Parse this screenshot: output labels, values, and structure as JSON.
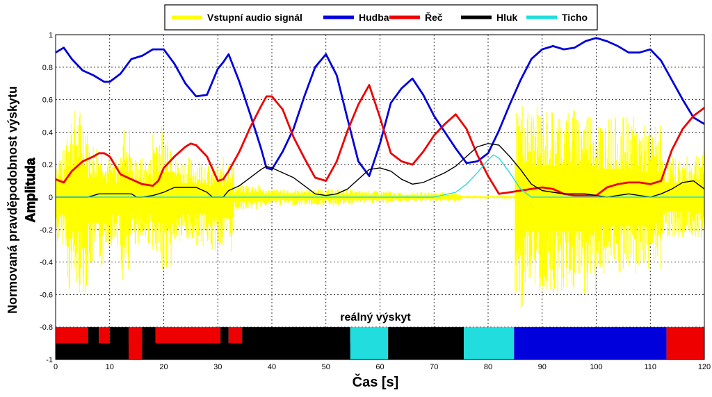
{
  "chart_data": {
    "type": "line",
    "xlabel": "Čas [s]",
    "ylabel": "Normovaná pravděpodobnost výskytu",
    "ylabel2": "Amplituda",
    "xlim": [
      0,
      120
    ],
    "ylim": [
      -1,
      1
    ],
    "xticks": [
      0,
      10,
      20,
      30,
      40,
      50,
      60,
      70,
      80,
      90,
      100,
      110,
      120
    ],
    "yticks": [
      1,
      0.8,
      0.6,
      0.4,
      0.2,
      0,
      -0.2,
      -0.4,
      -0.6,
      -0.8,
      -1
    ],
    "grid": true,
    "legend_position": "top",
    "annotation": "reálný výskyt",
    "series": [
      {
        "name": "Vstupní audio signál",
        "color": "#ffff00",
        "kind": "audio-envelope",
        "segments": [
          {
            "x0": 0,
            "x1": 2,
            "upper": 0.3,
            "lower": -0.3
          },
          {
            "x0": 2,
            "x1": 6,
            "upper": 0.55,
            "lower": -0.6
          },
          {
            "x0": 6,
            "x1": 9,
            "upper": 0.35,
            "lower": -0.45
          },
          {
            "x0": 9,
            "x1": 12,
            "upper": 0.25,
            "lower": -0.3
          },
          {
            "x0": 12,
            "x1": 14,
            "upper": 0.45,
            "lower": -0.55
          },
          {
            "x0": 14,
            "x1": 18,
            "upper": 0.25,
            "lower": -0.3
          },
          {
            "x0": 18,
            "x1": 22,
            "upper": 0.45,
            "lower": -0.45
          },
          {
            "x0": 22,
            "x1": 28,
            "upper": 0.25,
            "lower": -0.3
          },
          {
            "x0": 28,
            "x1": 31,
            "upper": 0.2,
            "lower": -0.35
          },
          {
            "x0": 31,
            "x1": 33,
            "upper": 0.25,
            "lower": -0.35
          },
          {
            "x0": 33,
            "x1": 38,
            "upper": 0.08,
            "lower": -0.08
          },
          {
            "x0": 38,
            "x1": 55,
            "upper": 0.05,
            "lower": -0.05
          },
          {
            "x0": 55,
            "x1": 62,
            "upper": 0.04,
            "lower": -0.04
          },
          {
            "x0": 62,
            "x1": 75,
            "upper": 0.03,
            "lower": -0.03
          },
          {
            "x0": 75,
            "x1": 85,
            "upper": 0.01,
            "lower": -0.01
          },
          {
            "x0": 85,
            "x1": 87,
            "upper": 0.6,
            "lower": -0.7
          },
          {
            "x0": 87,
            "x1": 100,
            "upper": 0.55,
            "lower": -0.6
          },
          {
            "x0": 100,
            "x1": 108,
            "upper": 0.5,
            "lower": -0.5
          },
          {
            "x0": 108,
            "x1": 112,
            "upper": 0.45,
            "lower": -0.45
          },
          {
            "x0": 112,
            "x1": 118,
            "upper": 0.25,
            "lower": -0.25
          },
          {
            "x0": 118,
            "x1": 120,
            "upper": 0.3,
            "lower": -0.25
          }
        ]
      },
      {
        "name": "Hudba",
        "color": "#0000dd",
        "x": [
          0,
          1.5,
          3,
          5,
          7,
          9,
          10,
          12,
          14,
          16,
          18,
          19,
          20,
          22,
          24,
          26,
          28,
          30,
          31,
          32,
          34,
          36,
          38,
          39,
          40,
          42,
          44,
          46,
          48,
          50,
          52,
          54,
          56,
          58,
          60,
          62,
          64,
          66,
          68,
          70,
          72,
          74,
          76,
          78,
          80,
          82,
          84,
          86,
          88,
          90,
          92,
          94,
          96,
          98,
          100,
          102,
          104,
          106,
          108,
          110,
          112,
          114,
          116,
          118,
          120
        ],
        "y": [
          0.89,
          0.92,
          0.85,
          0.78,
          0.75,
          0.71,
          0.71,
          0.76,
          0.85,
          0.87,
          0.91,
          0.91,
          0.91,
          0.82,
          0.7,
          0.62,
          0.63,
          0.79,
          0.83,
          0.88,
          0.71,
          0.51,
          0.3,
          0.18,
          0.17,
          0.28,
          0.42,
          0.62,
          0.8,
          0.88,
          0.75,
          0.48,
          0.22,
          0.13,
          0.33,
          0.58,
          0.67,
          0.73,
          0.63,
          0.5,
          0.4,
          0.3,
          0.21,
          0.22,
          0.27,
          0.41,
          0.57,
          0.72,
          0.85,
          0.91,
          0.93,
          0.91,
          0.92,
          0.96,
          0.98,
          0.96,
          0.93,
          0.89,
          0.89,
          0.91,
          0.84,
          0.72,
          0.6,
          0.49,
          0.45
        ]
      },
      {
        "name": "Řeč",
        "color": "#ee0000",
        "x": [
          0,
          1.5,
          3,
          5,
          7,
          8,
          9,
          10,
          12,
          14,
          16,
          18,
          19,
          20,
          22,
          24,
          25,
          26,
          28,
          30,
          31,
          32,
          34,
          36,
          38,
          39,
          40,
          42,
          44,
          46,
          48,
          50,
          52,
          54,
          56,
          58,
          60,
          62,
          64,
          66,
          68,
          70,
          72,
          74,
          76,
          78,
          80,
          82,
          84,
          86,
          88,
          90,
          92,
          94,
          96,
          98,
          100,
          102,
          104,
          106,
          108,
          110,
          112,
          114,
          116,
          118,
          120
        ],
        "y": [
          0.11,
          0.09,
          0.16,
          0.22,
          0.25,
          0.27,
          0.27,
          0.25,
          0.14,
          0.11,
          0.08,
          0.07,
          0.1,
          0.18,
          0.25,
          0.31,
          0.33,
          0.32,
          0.25,
          0.1,
          0.11,
          0.16,
          0.28,
          0.43,
          0.56,
          0.62,
          0.62,
          0.54,
          0.37,
          0.24,
          0.12,
          0.1,
          0.22,
          0.41,
          0.57,
          0.69,
          0.49,
          0.27,
          0.22,
          0.2,
          0.28,
          0.38,
          0.45,
          0.51,
          0.42,
          0.26,
          0.13,
          0.02,
          0.03,
          0.04,
          0.05,
          0.06,
          0.05,
          0.02,
          0.01,
          0.01,
          0.01,
          0.06,
          0.08,
          0.09,
          0.09,
          0.08,
          0.1,
          0.29,
          0.42,
          0.5,
          0.55
        ]
      },
      {
        "name": "Hluk",
        "color": "#000000",
        "x": [
          0,
          2,
          4,
          6,
          7,
          8,
          10,
          12,
          14,
          15,
          16,
          18,
          20,
          22,
          24,
          26,
          28,
          29,
          30,
          31,
          32,
          34,
          36,
          38,
          39,
          40,
          42,
          44,
          46,
          48,
          50,
          52,
          54,
          56,
          58,
          60,
          62,
          64,
          66,
          68,
          70,
          72,
          74,
          76,
          78,
          80,
          82,
          84,
          86,
          88,
          90,
          92,
          94,
          96,
          98,
          100,
          102,
          104,
          106,
          108,
          110,
          112,
          114,
          116,
          118,
          120
        ],
        "y": [
          0.0,
          0.0,
          0.0,
          0.0,
          0.01,
          0.02,
          0.02,
          0.02,
          0.02,
          0.0,
          0.0,
          0.01,
          0.03,
          0.06,
          0.06,
          0.06,
          0.03,
          0.0,
          0.0,
          0.0,
          0.04,
          0.07,
          0.12,
          0.17,
          0.19,
          0.18,
          0.15,
          0.12,
          0.07,
          0.02,
          0.01,
          0.02,
          0.05,
          0.11,
          0.17,
          0.18,
          0.16,
          0.11,
          0.08,
          0.09,
          0.12,
          0.15,
          0.19,
          0.25,
          0.31,
          0.33,
          0.32,
          0.25,
          0.17,
          0.08,
          0.04,
          0.03,
          0.02,
          0.02,
          0.02,
          0.01,
          0.0,
          0.01,
          0.02,
          0.01,
          0.0,
          0.02,
          0.05,
          0.09,
          0.1,
          0.05
        ]
      },
      {
        "name": "Ticho",
        "color": "#22dddd",
        "x": [
          0,
          70,
          74,
          76,
          78,
          80,
          81,
          82,
          84,
          86,
          88,
          120
        ],
        "y": [
          0.0,
          0.0,
          0.03,
          0.08,
          0.15,
          0.23,
          0.26,
          0.24,
          0.15,
          0.05,
          0.0,
          0.0
        ]
      }
    ],
    "occurrence_bar": {
      "y_range": [
        -1,
        -0.8
      ],
      "segments": [
        {
          "x0": 0,
          "x1": 6,
          "label": "Řeč",
          "color": "#ee0000"
        },
        {
          "x0": 6,
          "x1": 8,
          "label": "Hluk",
          "color": "#000000"
        },
        {
          "x0": 8,
          "x1": 10,
          "label": "Řeč",
          "color": "#ee0000"
        },
        {
          "x0": 10,
          "x1": 13.5,
          "label": "Hluk",
          "color": "#000000"
        },
        {
          "x0": 13.5,
          "x1": 16,
          "label": "Řeč",
          "color": "#ee0000"
        },
        {
          "x0": 16,
          "x1": 18.5,
          "label": "Hluk",
          "color": "#000000"
        },
        {
          "x0": 18.5,
          "x1": 30.5,
          "label": "Řeč",
          "color": "#ee0000"
        },
        {
          "x0": 30.5,
          "x1": 32,
          "label": "Hluk",
          "color": "#000000"
        },
        {
          "x0": 32,
          "x1": 34.5,
          "label": "Řeč",
          "color": "#ee0000"
        },
        {
          "x0": 34.5,
          "x1": 54.5,
          "label": "Hluk",
          "color": "#000000"
        },
        {
          "x0": 54.5,
          "x1": 61.5,
          "label": "Ticho",
          "color": "#22dddd"
        },
        {
          "x0": 61.5,
          "x1": 75.5,
          "label": "Hluk",
          "color": "#000000"
        },
        {
          "x0": 75.5,
          "x1": 84.8,
          "label": "Ticho",
          "color": "#22dddd"
        },
        {
          "x0": 84.8,
          "x1": 113,
          "label": "Hudba",
          "color": "#0000dd"
        },
        {
          "x0": 113,
          "x1": 120,
          "label": "Řeč",
          "color": "#ee0000"
        }
      ],
      "lower_band": [
        {
          "x0": 0,
          "x1": 13.5,
          "color": "#000000"
        },
        {
          "x0": 13.5,
          "x1": 16,
          "color": "#ee0000"
        },
        {
          "x0": 16,
          "x1": 54.5,
          "color": "#000000"
        }
      ]
    }
  }
}
